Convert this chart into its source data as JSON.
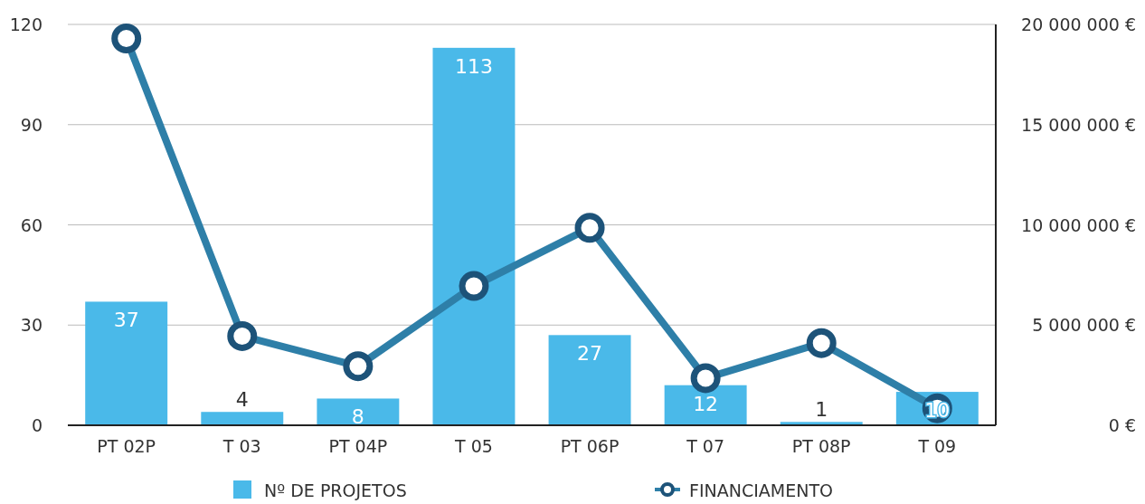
{
  "chart_data": {
    "type": "bar",
    "categories": [
      "PT 02P",
      "T 03",
      "PT 04P",
      "T 05",
      "PT 06P",
      "T 07",
      "PT 08P",
      "T 09"
    ],
    "series": [
      {
        "name": "Nº DE PROJETOS",
        "color": "#4ab9e9",
        "values": [
          37,
          4,
          8,
          113,
          27,
          12,
          1,
          10
        ],
        "value_labels": [
          "37",
          "4",
          "8",
          "113",
          "27",
          "12",
          "1",
          "10"
        ]
      },
      {
        "name": "FINANCIAMENTO",
        "type": "line",
        "axis": "y2",
        "color": "#2e7fa8",
        "values": [
          19300000,
          4450000,
          2950000,
          6950000,
          9850000,
          2350000,
          4100000,
          850000
        ]
      }
    ],
    "ylim": [
      0,
      120
    ],
    "yticks": [
      0,
      30,
      60,
      90,
      120
    ],
    "y2lim": [
      0,
      20000000
    ],
    "y2ticks": [
      {
        "value": 0,
        "label": "0 €"
      },
      {
        "value": 5000000,
        "label": "5 000 000 €"
      },
      {
        "value": 10000000,
        "label": "10 000 000 €"
      },
      {
        "value": 15000000,
        "label": "15 000 000 €"
      },
      {
        "value": 20000000,
        "label": "20 000 000 €"
      }
    ],
    "grid": "y",
    "legend": "bottom",
    "marker": "circle",
    "line_style": "solid"
  }
}
